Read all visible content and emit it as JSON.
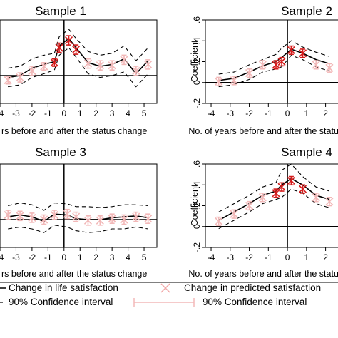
{
  "chart_data": [
    {
      "type": "line",
      "title": "Sample 1",
      "xlabel": "No. of years before and after the status change",
      "ylabel": "",
      "xlim": [
        -4,
        5.8
      ],
      "ylim": [
        -0.3,
        0.6
      ],
      "xticks": [
        -4,
        -3,
        -2,
        -1,
        0,
        1,
        2,
        3,
        4,
        5
      ],
      "yticks": [],
      "series": [
        {
          "name": "Change in life satisfaction",
          "x": [
            -3.5,
            -2.75,
            -2.0,
            -1.25,
            -0.6,
            -0.3,
            0.3,
            0.75,
            1.5,
            2.25,
            3.0,
            3.75,
            4.5,
            5.25
          ],
          "y": [
            -0.02,
            0.0,
            0.08,
            0.12,
            0.15,
            0.32,
            0.4,
            0.3,
            0.14,
            0.1,
            0.12,
            0.18,
            0.02,
            0.16
          ],
          "lo": [
            -0.12,
            -0.1,
            -0.02,
            0.02,
            0.06,
            0.22,
            0.3,
            0.2,
            0.02,
            -0.02,
            0.0,
            0.04,
            -0.12,
            0.02
          ],
          "hi": [
            0.08,
            0.1,
            0.18,
            0.22,
            0.24,
            0.42,
            0.5,
            0.4,
            0.26,
            0.22,
            0.24,
            0.32,
            0.16,
            0.3
          ]
        },
        {
          "name": "Change in predicted satisfaction",
          "x": [
            -3.5,
            -2.75,
            -2.0,
            -1.25,
            -0.6,
            -0.3,
            0.3,
            0.75,
            1.5,
            2.25,
            3.0,
            3.75,
            4.5,
            5.25
          ],
          "y": [
            -0.05,
            -0.02,
            0.05,
            0.1,
            0.14,
            0.3,
            0.38,
            0.28,
            0.13,
            0.11,
            0.11,
            0.17,
            0.05,
            0.12
          ],
          "lo": [
            -0.09,
            -0.07,
            0.0,
            0.06,
            0.1,
            0.25,
            0.33,
            0.23,
            0.08,
            0.06,
            0.06,
            0.12,
            0.0,
            0.07
          ],
          "hi": [
            -0.01,
            0.03,
            0.1,
            0.14,
            0.18,
            0.35,
            0.43,
            0.33,
            0.18,
            0.16,
            0.16,
            0.22,
            0.1,
            0.17
          ]
        }
      ]
    },
    {
      "type": "line",
      "title": "Sample 2",
      "xlabel": "No. of years before and after the status change",
      "ylabel": "Coefficient",
      "xlim": [
        -4.3,
        2.8
      ],
      "ylim": [
        -0.2,
        0.6
      ],
      "xticks": [
        -4,
        -3,
        -2,
        -1,
        0,
        1,
        2
      ],
      "yticks": [
        -0.2,
        0,
        0.2,
        0.4,
        0.6
      ],
      "ytick_labels": [
        "-.2",
        "0",
        ".2",
        ".4",
        ".6"
      ],
      "series": [
        {
          "name": "Change in life satisfaction",
          "x": [
            -3.6,
            -2.8,
            -2.0,
            -1.3,
            -0.6,
            -0.3,
            0.2,
            0.8,
            1.5,
            2.2
          ],
          "y": [
            0.02,
            0.04,
            0.1,
            0.16,
            0.2,
            0.24,
            0.32,
            0.28,
            0.22,
            0.18
          ],
          "lo": [
            -0.04,
            -0.02,
            0.03,
            0.1,
            0.13,
            0.15,
            0.26,
            0.22,
            0.15,
            0.11
          ],
          "hi": [
            0.08,
            0.1,
            0.17,
            0.22,
            0.27,
            0.33,
            0.4,
            0.34,
            0.29,
            0.25
          ]
        },
        {
          "name": "Change in predicted satisfaction",
          "x": [
            -3.6,
            -2.8,
            -2.0,
            -1.3,
            -0.6,
            -0.3,
            0.2,
            0.8,
            1.5,
            2.2
          ],
          "y": [
            0.01,
            0.02,
            0.09,
            0.17,
            0.17,
            0.2,
            0.31,
            0.28,
            0.17,
            0.14
          ],
          "lo": [
            -0.03,
            -0.02,
            0.05,
            0.13,
            0.13,
            0.16,
            0.27,
            0.24,
            0.13,
            0.1
          ],
          "hi": [
            0.05,
            0.06,
            0.13,
            0.21,
            0.21,
            0.24,
            0.35,
            0.32,
            0.21,
            0.18
          ]
        }
      ]
    },
    {
      "type": "line",
      "title": "Sample 3",
      "xlabel": "No. of years before and after the status change",
      "ylabel": "",
      "xlim": [
        -4,
        5.8
      ],
      "ylim": [
        -0.3,
        0.6
      ],
      "xticks": [
        -4,
        -3,
        -2,
        -1,
        0,
        1,
        2,
        3,
        4,
        5
      ],
      "yticks": [],
      "series": [
        {
          "name": "Change in life satisfaction",
          "x": [
            -3.5,
            -2.75,
            -2.0,
            -1.25,
            -0.6,
            0.2,
            0.75,
            1.5,
            2.25,
            3.0,
            3.75,
            4.5,
            5.25
          ],
          "y": [
            0.03,
            0.05,
            0.03,
            -0.02,
            0.06,
            0.05,
            0.01,
            0.0,
            0.0,
            0.02,
            0.03,
            0.04,
            0.02
          ],
          "lo": [
            -0.1,
            -0.08,
            -0.1,
            -0.14,
            -0.06,
            -0.08,
            -0.12,
            -0.14,
            -0.13,
            -0.1,
            -0.1,
            -0.08,
            -0.1
          ],
          "hi": [
            0.15,
            0.18,
            0.16,
            0.1,
            0.18,
            0.17,
            0.14,
            0.14,
            0.13,
            0.14,
            0.16,
            0.16,
            0.15
          ]
        },
        {
          "name": "Change in predicted satisfaction",
          "x": [
            -3.5,
            -2.75,
            -2.0,
            -1.25,
            -0.6,
            0.2,
            0.75,
            1.5,
            2.25,
            3.0,
            3.75,
            4.5,
            5.25
          ],
          "y": [
            0.05,
            0.04,
            0.02,
            0.0,
            0.05,
            0.06,
            0.03,
            -0.01,
            -0.01,
            0.01,
            0.0,
            0.03,
            0.01
          ],
          "lo": [
            0.0,
            -0.01,
            -0.03,
            -0.05,
            0.0,
            0.01,
            -0.02,
            -0.06,
            -0.06,
            -0.04,
            -0.05,
            -0.02,
            -0.04
          ],
          "hi": [
            0.1,
            0.09,
            0.07,
            0.05,
            0.1,
            0.11,
            0.08,
            0.04,
            0.04,
            0.06,
            0.05,
            0.08,
            0.06
          ]
        }
      ]
    },
    {
      "type": "line",
      "title": "Sample 4",
      "xlabel": "No. of years before and after the status change",
      "ylabel": "Coefficient",
      "xlim": [
        -4.3,
        2.8
      ],
      "ylim": [
        -0.2,
        0.6
      ],
      "xticks": [
        -4,
        -3,
        -2,
        -1,
        0,
        1,
        2
      ],
      "yticks": [
        -0.2,
        0,
        0.2,
        0.4,
        0.6
      ],
      "ytick_labels": [
        "-.2",
        "0",
        ".2",
        ".4",
        ".6"
      ],
      "series": [
        {
          "name": "Change in life satisfaction",
          "x": [
            -3.6,
            -2.8,
            -2.0,
            -1.3,
            -0.6,
            -0.3,
            0.2,
            0.8,
            1.5,
            2.2
          ],
          "y": [
            0.06,
            0.14,
            0.22,
            0.3,
            0.34,
            0.4,
            0.46,
            0.4,
            0.3,
            0.26
          ],
          "lo": [
            -0.02,
            0.06,
            0.14,
            0.22,
            0.26,
            0.28,
            0.36,
            0.32,
            0.22,
            0.18
          ],
          "hi": [
            0.14,
            0.22,
            0.3,
            0.38,
            0.42,
            0.54,
            0.6,
            0.48,
            0.38,
            0.34
          ]
        },
        {
          "name": "Change in predicted satisfaction",
          "x": [
            -3.6,
            -2.8,
            -2.0,
            -1.3,
            -0.6,
            -0.3,
            0.2,
            0.8,
            1.5,
            2.2
          ],
          "y": [
            0.05,
            0.12,
            0.2,
            0.28,
            0.32,
            0.38,
            0.44,
            0.36,
            0.28,
            0.24
          ],
          "lo": [
            0.01,
            0.08,
            0.16,
            0.24,
            0.28,
            0.34,
            0.4,
            0.32,
            0.24,
            0.2
          ],
          "hi": [
            0.09,
            0.16,
            0.24,
            0.32,
            0.36,
            0.42,
            0.48,
            0.4,
            0.32,
            0.28
          ]
        }
      ]
    }
  ],
  "legend": {
    "items": [
      {
        "label": "Change in life satisfaction",
        "symbol": "line"
      },
      {
        "label": "Change in predicted satisfaction",
        "symbol": "x-marker"
      },
      {
        "label": "90% Confidence interval",
        "symbol": "dashed-line"
      },
      {
        "label": "90% Confidence interval",
        "symbol": "error-bar"
      }
    ]
  },
  "colors": {
    "pre": "#f2b8b8",
    "post": "#d41c1c",
    "line": "#000000"
  }
}
